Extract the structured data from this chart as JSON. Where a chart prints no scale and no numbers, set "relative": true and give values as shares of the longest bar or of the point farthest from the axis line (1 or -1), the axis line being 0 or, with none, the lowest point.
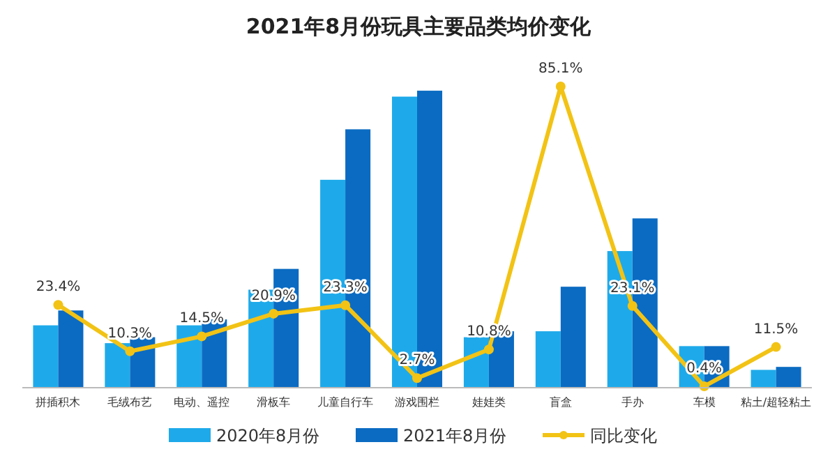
{
  "chart_data": [
    {
      "type": "bar",
      "title": "2021年8月份玩具主要品类均价变化",
      "categories": [
        "拼插积木",
        "毛绒布艺",
        "电动、遥控",
        "滑板车",
        "儿童自行车",
        "游戏围栏",
        "娃娃类",
        "盲盒",
        "手办",
        "车模",
        "粘土/超轻粘土"
      ],
      "relative": true,
      "legend": "bottom",
      "series": [
        {
          "name": "2020年8月份",
          "color": "#1eaaea",
          "values": [
            0.21,
            0.15,
            0.21,
            0.33,
            0.7,
            0.98,
            0.17,
            0.19,
            0.46,
            0.14,
            0.06
          ]
        },
        {
          "name": "2021年8月份",
          "color": "#0b6bc2",
          "values": [
            0.26,
            0.17,
            0.23,
            0.4,
            0.87,
            1,
            0.19,
            0.34,
            0.57,
            0.14,
            0.07
          ]
        }
      ]
    },
    {
      "type": "line",
      "categories": [
        null,
        null,
        null,
        null,
        null,
        null,
        null,
        null,
        null,
        null,
        null
      ],
      "legend": "bottom",
      "marker": "circle",
      "series": [
        {
          "name": "同比变化",
          "color": "#f2c315",
          "values": [
            23.4,
            10.3,
            14.5,
            20.9,
            23.3,
            2.7,
            10.8,
            85.1,
            23.1,
            0.4,
            11.5
          ],
          "value_labels": [
            "23.4%",
            "10.3%",
            "14.5%",
            "20.9%",
            "23.3%",
            "2.7%",
            "10.8%",
            "85.1%",
            "23.1%",
            "0.4%",
            "11.5%"
          ]
        }
      ]
    }
  ]
}
